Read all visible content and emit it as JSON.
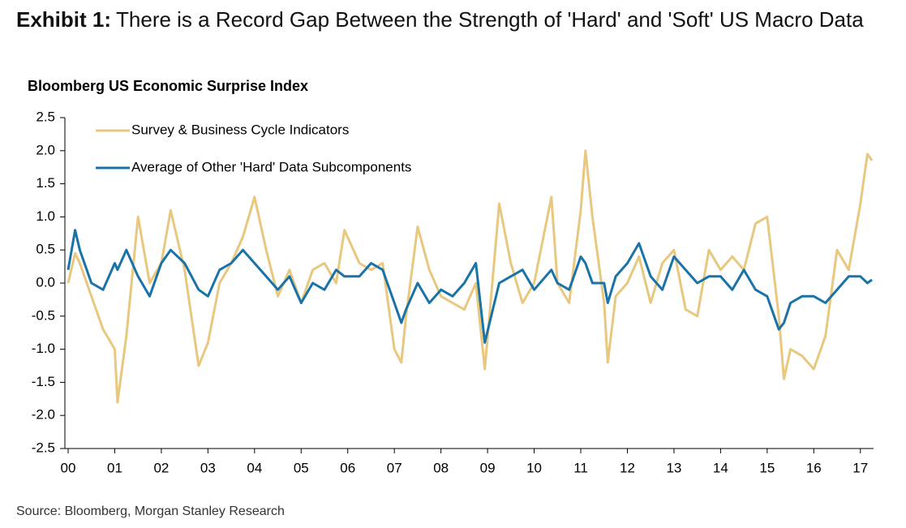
{
  "exhibit_label": "Exhibit 1:",
  "title": "There is a Record Gap Between the Strength of 'Hard' and 'Soft' US Macro Data",
  "source": "Source: Bloomberg, Morgan Stanley Research",
  "chart_data": {
    "type": "line",
    "subtitle": "Bloomberg US Economic Surprise Index",
    "legend": "upper left",
    "grid": false,
    "x": [
      0,
      0.15,
      0.25,
      0.5,
      0.75,
      1.0,
      1.06,
      1.25,
      1.5,
      1.75,
      2.0,
      2.2,
      2.5,
      2.8,
      3.0,
      3.25,
      3.5,
      3.75,
      4.0,
      4.25,
      4.5,
      4.75,
      5.0,
      5.25,
      5.5,
      5.75,
      5.93,
      6.25,
      6.5,
      6.75,
      7.0,
      7.15,
      7.25,
      7.5,
      7.75,
      8.0,
      8.25,
      8.5,
      8.75,
      8.94,
      9.25,
      9.5,
      9.75,
      10.0,
      10.37,
      10.5,
      10.75,
      11.0,
      11.1,
      11.25,
      11.5,
      11.58,
      11.75,
      12.0,
      12.25,
      12.5,
      12.75,
      13.0,
      13.25,
      13.5,
      13.75,
      14.0,
      14.25,
      14.5,
      14.75,
      15.0,
      15.25,
      15.36,
      15.5,
      15.75,
      16.0,
      16.25,
      16.5,
      16.75,
      17.0,
      17.15,
      17.25
    ],
    "series": [
      {
        "name": "Survey & Business Cycle Indicators",
        "color": "#e8c77e",
        "values": [
          0.0,
          0.45,
          0.3,
          -0.2,
          -0.7,
          -1.0,
          -1.8,
          -0.8,
          1.0,
          0.0,
          0.3,
          1.1,
          0.2,
          -1.25,
          -0.9,
          0.0,
          0.3,
          0.7,
          1.3,
          0.5,
          -0.2,
          0.2,
          -0.3,
          0.2,
          0.3,
          0.0,
          0.8,
          0.3,
          0.2,
          0.3,
          -1.0,
          -1.2,
          -0.5,
          0.85,
          0.2,
          -0.2,
          -0.3,
          -0.4,
          0.0,
          -1.3,
          1.2,
          0.3,
          -0.3,
          0.0,
          1.3,
          0.0,
          -0.3,
          1.1,
          2.0,
          1.0,
          -0.3,
          -1.2,
          -0.2,
          0.0,
          0.4,
          -0.3,
          0.3,
          0.5,
          -0.4,
          -0.5,
          0.5,
          0.2,
          0.4,
          0.2,
          0.9,
          1.0,
          -0.5,
          -1.45,
          -1.0,
          -1.1,
          -1.3,
          -0.8,
          0.5,
          0.2,
          1.2,
          1.95,
          1.85
        ]
      },
      {
        "name": "Average of Other 'Hard' Data Subcomponents",
        "color": "#1a73a8",
        "values": [
          0.2,
          0.8,
          0.5,
          0.0,
          -0.1,
          0.3,
          0.2,
          0.5,
          0.1,
          -0.2,
          0.3,
          0.5,
          0.3,
          -0.1,
          -0.2,
          0.2,
          0.3,
          0.5,
          0.3,
          0.1,
          -0.1,
          0.1,
          -0.3,
          0.0,
          -0.1,
          0.2,
          0.1,
          0.1,
          0.3,
          0.2,
          -0.3,
          -0.6,
          -0.4,
          0.0,
          -0.3,
          -0.1,
          -0.2,
          0.0,
          0.3,
          -0.9,
          0.0,
          0.1,
          0.2,
          -0.1,
          0.2,
          0.0,
          -0.1,
          0.4,
          0.3,
          0.0,
          0.0,
          -0.3,
          0.1,
          0.3,
          0.6,
          0.1,
          -0.1,
          0.4,
          0.2,
          0.0,
          0.1,
          0.1,
          -0.1,
          0.2,
          -0.1,
          -0.2,
          -0.7,
          -0.6,
          -0.3,
          -0.2,
          -0.2,
          -0.3,
          -0.1,
          0.1,
          0.1,
          0.0,
          0.05
        ]
      }
    ],
    "xlim": [
      0,
      17.3
    ],
    "xticks": [
      {
        "value": 0,
        "label": "00"
      },
      {
        "value": 1,
        "label": "01"
      },
      {
        "value": 2,
        "label": "02"
      },
      {
        "value": 3,
        "label": "03"
      },
      {
        "value": 4,
        "label": "04"
      },
      {
        "value": 5,
        "label": "05"
      },
      {
        "value": 6,
        "label": "06"
      },
      {
        "value": 7,
        "label": "07"
      },
      {
        "value": 8,
        "label": "08"
      },
      {
        "value": 9,
        "label": "09"
      },
      10,
      11,
      12,
      13,
      14,
      15,
      16,
      17
    ],
    "ylim": [
      -2.5,
      2.5
    ],
    "yticks": [
      2.5,
      {
        "value": 2,
        "label": "2.0"
      },
      1.5,
      {
        "value": 1,
        "label": "1.0"
      },
      0.5,
      {
        "value": 0,
        "label": "0.0"
      },
      -0.5,
      {
        "value": -1,
        "label": "-1.0"
      },
      -1.5,
      {
        "value": -2,
        "label": "-2.0"
      },
      -2.5
    ]
  }
}
